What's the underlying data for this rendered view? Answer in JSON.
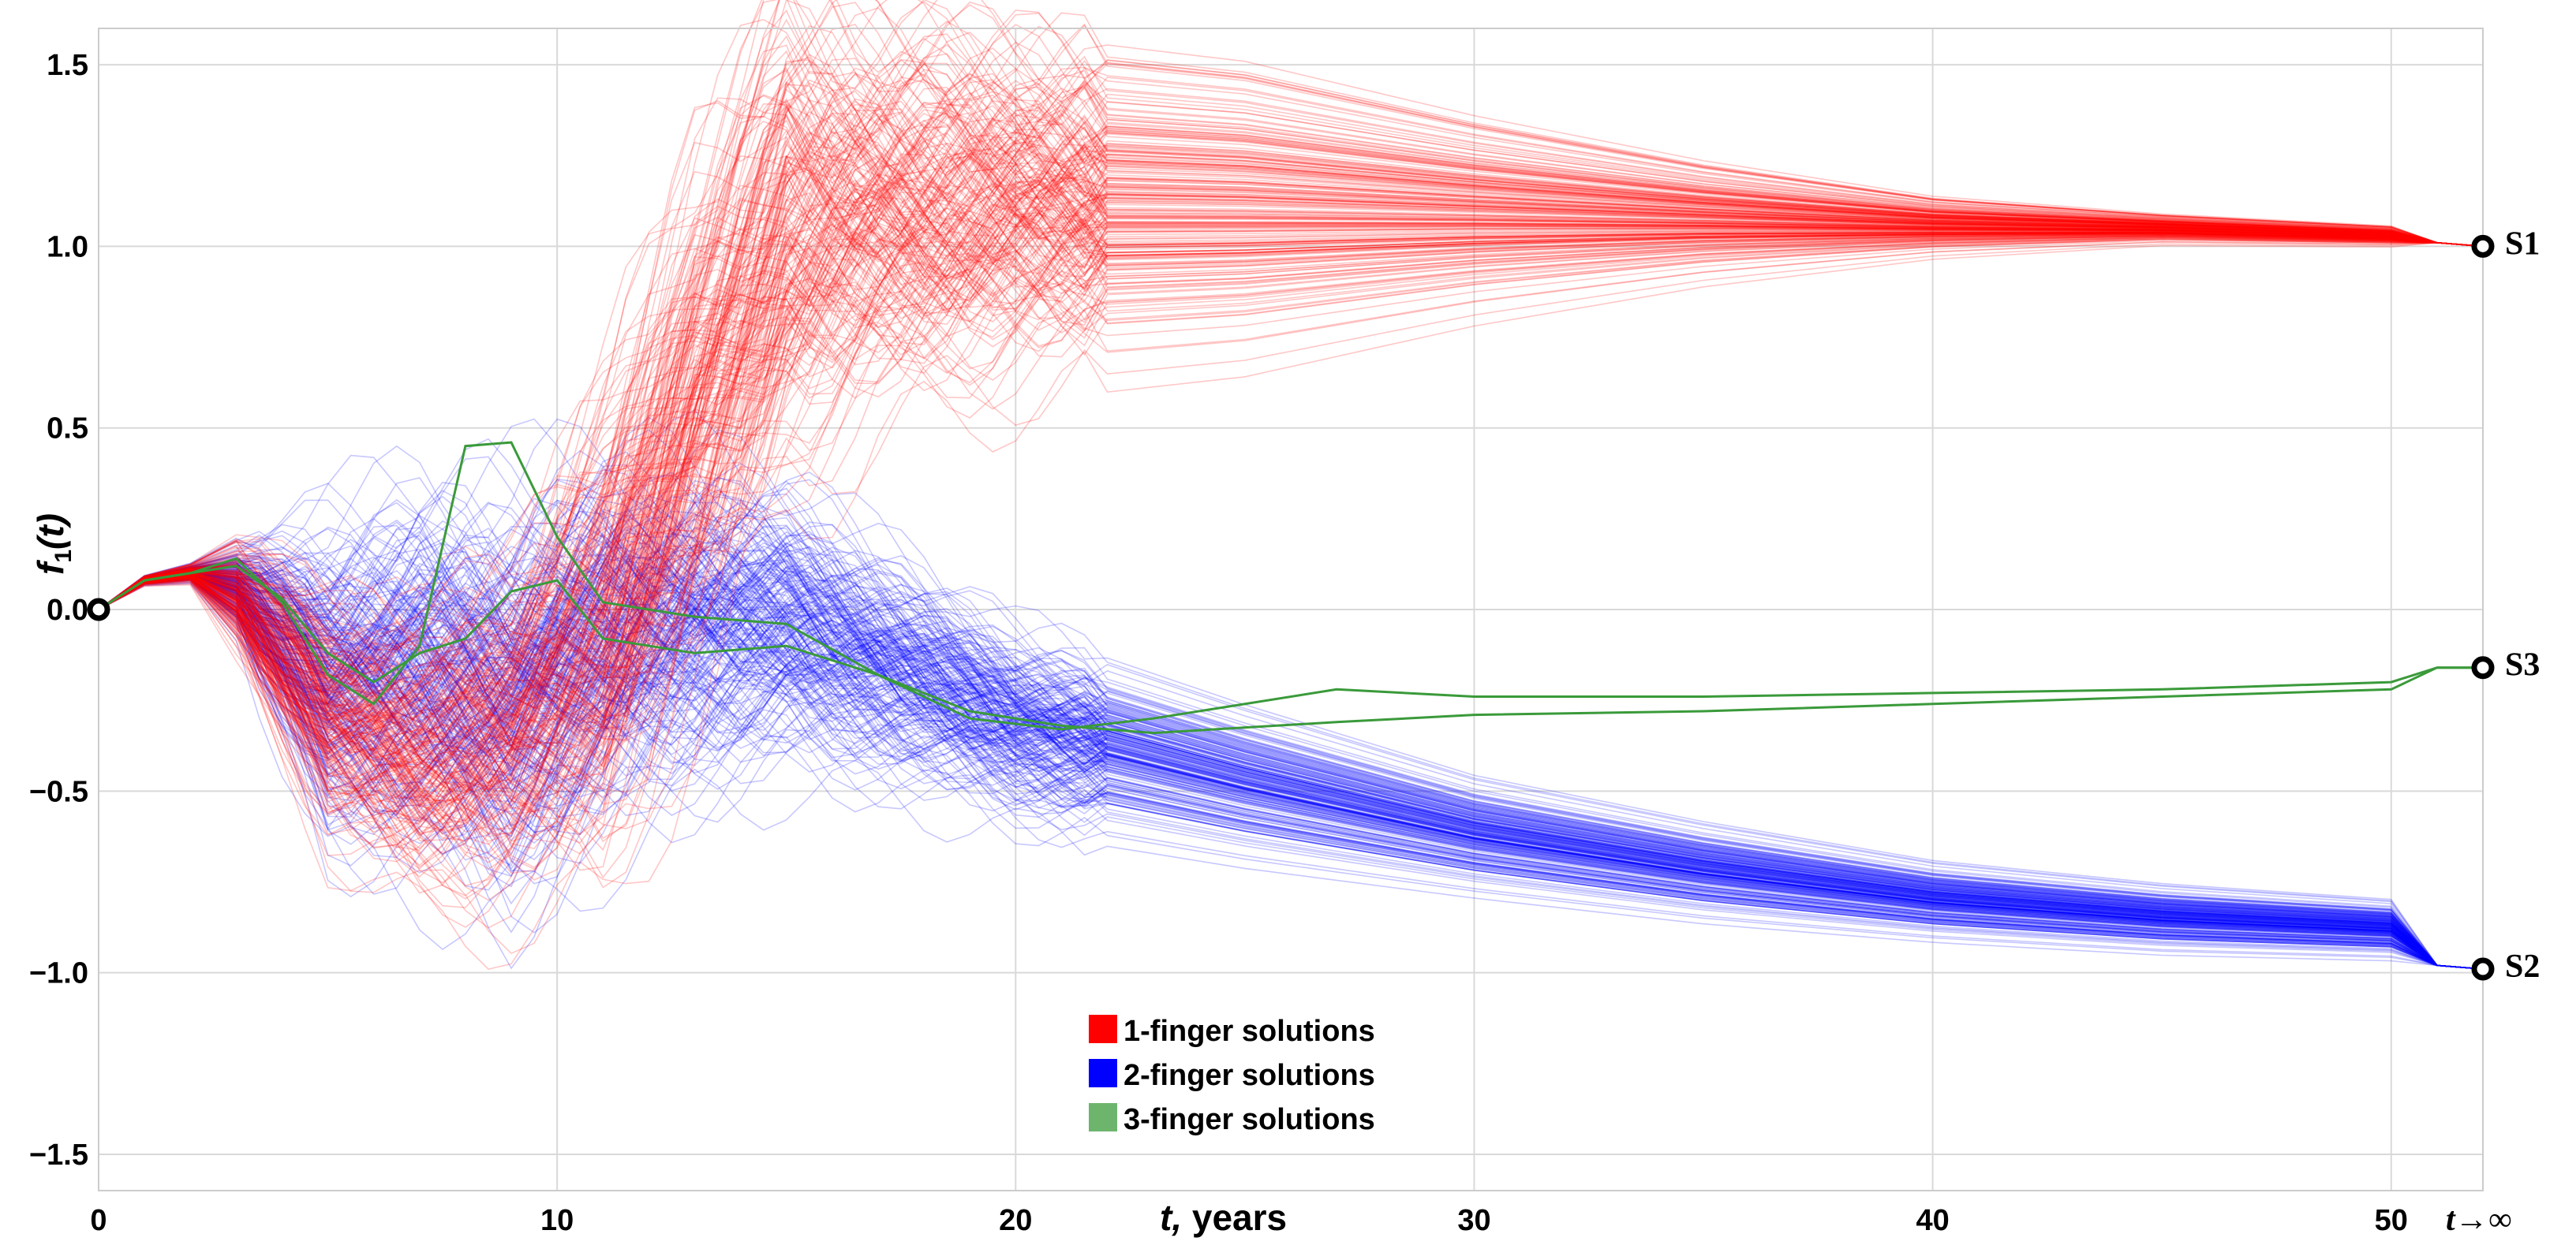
{
  "chart_data": {
    "type": "line",
    "title": "",
    "xlabel_var": "t,",
    "xlabel_unit": " years",
    "ylabel_main": "f",
    "ylabel_sub": "1",
    "ylabel_arg": "(t)",
    "xlim": [
      0,
      52
    ],
    "ylim": [
      -1.6,
      1.6
    ],
    "x_ticks": [
      0,
      10,
      20,
      30,
      40,
      50
    ],
    "x_tick_labels": [
      "0",
      "10",
      "20",
      "30",
      "40",
      "50"
    ],
    "x_infinity_label": "t→∞",
    "y_ticks": [
      -1.5,
      -1.0,
      -0.5,
      0.0,
      0.5,
      1.0,
      1.5
    ],
    "y_tick_labels": [
      "−1.5",
      "−1.0",
      "−0.5",
      "0.0",
      "0.5",
      "1.0",
      "1.5"
    ],
    "grid": true,
    "legend_position": "bottom-center",
    "legend": [
      {
        "label": "1-finger solutions",
        "color": "#ff0000"
      },
      {
        "label": "2-finger solutions",
        "color": "#0000ff"
      },
      {
        "label": "3-finger solutions",
        "color": "#6db56d"
      }
    ],
    "start_point": {
      "x": 0,
      "y": 0.0
    },
    "end_points": [
      {
        "name": "S1",
        "x": 52,
        "y": 1.0
      },
      {
        "name": "S3",
        "x": 52,
        "y": -0.16
      },
      {
        "name": "S2",
        "x": 52,
        "y": -0.99
      }
    ],
    "series": [
      {
        "name": "1-finger solutions",
        "color": "#ff0000",
        "ensemble": true,
        "x": [
          0,
          1,
          2,
          3,
          5,
          7,
          9,
          11,
          13,
          15,
          17,
          20,
          25,
          30,
          35,
          40,
          45,
          50,
          51,
          52
        ],
        "y_median": [
          0,
          0.08,
          0.1,
          0.05,
          -0.28,
          -0.38,
          -0.32,
          -0.05,
          0.55,
          1.05,
          1.1,
          1.13,
          1.12,
          1.1,
          1.08,
          1.06,
          1.05,
          1.03,
          1.01,
          1.0
        ],
        "y_spread": [
          0,
          0.01,
          0.02,
          0.12,
          0.25,
          0.3,
          0.35,
          0.5,
          0.55,
          0.5,
          0.4,
          0.35,
          0.3,
          0.2,
          0.12,
          0.06,
          0.03,
          0.02,
          0.0,
          0.0
        ]
      },
      {
        "name": "2-finger solutions",
        "color": "#0000ff",
        "ensemble": true,
        "x": [
          0,
          1,
          2,
          3,
          5,
          7,
          9,
          11,
          13,
          15,
          17,
          20,
          25,
          30,
          35,
          40,
          45,
          50,
          51,
          52
        ],
        "y_median": [
          0,
          0.08,
          0.1,
          0.06,
          -0.2,
          -0.18,
          -0.25,
          -0.1,
          -0.05,
          -0.05,
          -0.15,
          -0.32,
          -0.48,
          -0.62,
          -0.72,
          -0.8,
          -0.85,
          -0.88,
          -0.98,
          -0.99
        ],
        "y_spread": [
          0,
          0.01,
          0.02,
          0.1,
          0.35,
          0.4,
          0.45,
          0.4,
          0.35,
          0.3,
          0.25,
          0.2,
          0.16,
          0.12,
          0.1,
          0.08,
          0.07,
          0.06,
          0.0,
          0.0
        ]
      },
      {
        "name": "3-finger solution A",
        "color": "#3a9a3a",
        "x": [
          0,
          1,
          2,
          3,
          4,
          5,
          6,
          7,
          8,
          9,
          10,
          11,
          13,
          15,
          17,
          19,
          21,
          23,
          27,
          30,
          35,
          40,
          45,
          50,
          51,
          52
        ],
        "y": [
          0,
          0.08,
          0.1,
          0.14,
          0.02,
          -0.18,
          -0.26,
          -0.1,
          0.45,
          0.46,
          0.2,
          0.02,
          -0.02,
          -0.04,
          -0.18,
          -0.3,
          -0.33,
          -0.3,
          -0.22,
          -0.24,
          -0.24,
          -0.23,
          -0.22,
          -0.2,
          -0.16,
          -0.16
        ]
      },
      {
        "name": "3-finger solution B",
        "color": "#3a9a3a",
        "x": [
          0,
          1,
          2,
          3,
          4,
          5,
          6,
          7,
          8,
          9,
          10,
          11,
          13,
          15,
          17,
          19,
          21,
          23,
          27,
          30,
          35,
          40,
          45,
          50,
          51,
          52
        ],
        "y": [
          0,
          0.08,
          0.1,
          0.12,
          0.03,
          -0.12,
          -0.2,
          -0.12,
          -0.08,
          0.05,
          0.08,
          -0.08,
          -0.12,
          -0.1,
          -0.18,
          -0.28,
          -0.32,
          -0.34,
          -0.31,
          -0.29,
          -0.28,
          -0.26,
          -0.24,
          -0.22,
          -0.16,
          -0.16
        ]
      }
    ]
  }
}
